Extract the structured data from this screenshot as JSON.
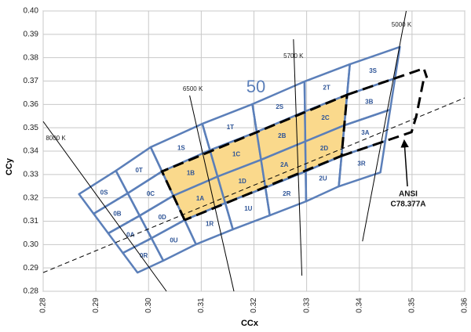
{
  "chart_data": {
    "type": "bin-map",
    "xlabel": "CCx",
    "ylabel": "CCy",
    "xlim": [
      0.28,
      0.36
    ],
    "ylim": [
      0.28,
      0.4
    ],
    "xticks": [
      {
        "value": 0.28,
        "label": "0.28"
      },
      {
        "value": 0.29,
        "label": "0.29"
      },
      {
        "value": 0.3,
        "label": "0.30"
      },
      {
        "value": 0.31,
        "label": "0.31"
      },
      {
        "value": 0.32,
        "label": "0.32"
      },
      {
        "value": 0.33,
        "label": "0.33"
      },
      {
        "value": 0.34,
        "label": "0.34"
      },
      {
        "value": 0.35,
        "label": "0.35"
      },
      {
        "value": 0.36,
        "label": "0.36"
      }
    ],
    "yticks": [
      {
        "value": 0.28,
        "label": "0.28"
      },
      {
        "value": 0.29,
        "label": "0.29"
      },
      {
        "value": 0.3,
        "label": "0.30"
      },
      {
        "value": 0.31,
        "label": "0.31"
      },
      {
        "value": 0.32,
        "label": "0.32"
      },
      {
        "value": 0.33,
        "label": "0.33"
      },
      {
        "value": 0.34,
        "label": "0.34"
      },
      {
        "value": 0.35,
        "label": "0.35"
      },
      {
        "value": 0.36,
        "label": "0.36"
      },
      {
        "value": 0.37,
        "label": "0.37"
      },
      {
        "value": 0.38,
        "label": "0.38"
      },
      {
        "value": 0.39,
        "label": "0.39"
      },
      {
        "value": 0.4,
        "label": "0.40"
      }
    ],
    "grid": true,
    "bin_color": "#5b7fb9",
    "highlight_color": "#fad98c",
    "boundaries": [
      {
        "x": [
          0.2868,
          0.2979
        ],
        "y": [
          0.3216,
          0.288
        ]
      },
      {
        "x": [
          0.2938,
          0.3028
        ],
        "y": [
          0.3316,
          0.2931
        ]
      },
      {
        "x": [
          0.3004,
          0.309
        ],
        "y": [
          0.3417,
          0.3001
        ]
      },
      {
        "x": [
          0.3102,
          0.316
        ],
        "y": [
          0.3517,
          0.3065
        ]
      },
      {
        "x": [
          0.3197,
          0.323
        ],
        "y": [
          0.3601,
          0.3125
        ]
      },
      {
        "x": [
          0.3296,
          0.3299
        ],
        "y": [
          0.3698,
          0.3185
        ]
      },
      {
        "x": [
          0.3382,
          0.3361
        ],
        "y": [
          0.3772,
          0.3249
        ]
      },
      {
        "x": [
          0.3477,
          0.344
        ],
        "y": [
          0.3846,
          0.3309
        ]
      }
    ],
    "bins": [
      {
        "labels": [
          "0S",
          "0B",
          "0A",
          "0R"
        ],
        "highlight": [
          false,
          false,
          false,
          false
        ]
      },
      {
        "labels": [
          "0T",
          "0C",
          "0D",
          "0U"
        ],
        "highlight": [
          false,
          false,
          false,
          false
        ]
      },
      {
        "labels": [
          "1S",
          "1B",
          "1A",
          "1R"
        ],
        "highlight": [
          false,
          true,
          true,
          false
        ]
      },
      {
        "labels": [
          "1T",
          "1C",
          "1D",
          "1U"
        ],
        "highlight": [
          false,
          true,
          true,
          false
        ]
      },
      {
        "labels": [
          "2S",
          "2B",
          "2A",
          "2R"
        ],
        "highlight": [
          false,
          true,
          true,
          false
        ]
      },
      {
        "labels": [
          "2T",
          "2C",
          "2D",
          "2U"
        ],
        "highlight": [
          false,
          true,
          true,
          false
        ]
      },
      {
        "labels": [
          "3S",
          "3B",
          "3A",
          "3R"
        ],
        "highlight": [
          false,
          false,
          false,
          false
        ]
      }
    ],
    "locus": {
      "x": [
        0.28,
        0.36
      ],
      "y": [
        0.288,
        0.3628
      ]
    },
    "cct_lines": [
      {
        "label": "8000 K",
        "x": [
          0.28,
          0.3034
        ],
        "y": [
          0.3527,
          0.28
        ]
      },
      {
        "label": "6500 K",
        "x": [
          0.3078,
          0.3162
        ],
        "y": [
          0.3638,
          0.28
        ]
      },
      {
        "label": "5700 K",
        "x": [
          0.3275,
          0.3291
        ],
        "y": [
          0.3879,
          0.2867
        ]
      },
      {
        "label": "5000 K",
        "x": [
          0.3489,
          0.3406
        ],
        "y": [
          0.4,
          0.3014
        ]
      }
    ],
    "region_label": "50",
    "annotation_lines": [
      "ANSI",
      "C78.377A"
    ]
  }
}
